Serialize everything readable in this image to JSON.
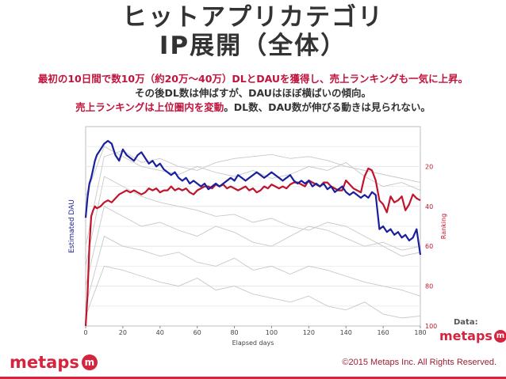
{
  "slide": {
    "title_line1": "ヒットアプリカテゴリ",
    "title_line2": "IP展開（全体）",
    "desc_line1": "最初の10日間で数10万（約20万～40万）DLとDAUを獲得し、売上ランキングも一気に上昇。",
    "desc_line2": "その後DL数は伸ばすが、DAUはほぼ横ばいの傾向。",
    "desc_line3_red": "売上ランキングは上位圏内を変動",
    "desc_line3_rest": "。DL数、DAU数が伸びる動きは見られない。",
    "data_label": "Data:",
    "logo_text": "metaps",
    "logo_mark": "m",
    "copyright": "©2015 Metaps Inc. All Rights Reserved.",
    "accent_color": "#d4253f"
  },
  "chart_data": {
    "type": "line",
    "xlabel": "Elapsed days",
    "ylabel_left": "Estimated DAU",
    "ylabel_right": "Ranking",
    "xlim": [
      0,
      180
    ],
    "x_ticks": [
      "0",
      "20",
      "40",
      "60",
      "80",
      "100",
      "120",
      "140",
      "160",
      "180"
    ],
    "right_axis": {
      "ylim": [
        100,
        0
      ],
      "reversed": true,
      "ticks": [
        "20",
        "40",
        "60",
        "80",
        "100"
      ]
    },
    "left_axis": {
      "tick_labels_shown": false
    },
    "grid": "horizontal",
    "colors": {
      "ranking": "#c0142c",
      "dau": "#1a1f9c",
      "background_lines": "#c8c8c8"
    },
    "series": [
      {
        "role": "ranking",
        "axis": "right",
        "x": [
          0,
          1,
          2,
          3,
          4,
          5,
          6,
          8,
          10,
          12,
          14,
          16,
          18,
          20,
          22,
          24,
          26,
          28,
          30,
          32,
          34,
          36,
          38,
          40,
          42,
          44,
          46,
          48,
          50,
          52,
          54,
          56,
          58,
          60,
          62,
          64,
          66,
          68,
          70,
          72,
          74,
          76,
          78,
          80,
          82,
          84,
          86,
          88,
          90,
          92,
          94,
          96,
          98,
          100,
          102,
          104,
          106,
          108,
          110,
          112,
          114,
          116,
          118,
          120,
          122,
          124,
          126,
          128,
          130,
          132,
          134,
          136,
          138,
          140,
          142,
          144,
          146,
          148,
          150,
          152,
          154,
          156,
          158,
          160,
          162,
          164,
          166,
          168,
          170,
          172,
          174,
          176,
          178,
          180
        ],
        "values": [
          100,
          85,
          60,
          45,
          42,
          40,
          41,
          40,
          38,
          37,
          38,
          36,
          34,
          33,
          32,
          33,
          32,
          33,
          34,
          33,
          31,
          32,
          31,
          33,
          32,
          32,
          30,
          32,
          31,
          32,
          31,
          33,
          34,
          32,
          31,
          30,
          30,
          31,
          29,
          30,
          29,
          31,
          30,
          31,
          32,
          31,
          30,
          32,
          31,
          33,
          32,
          30,
          31,
          29,
          30,
          31,
          30,
          31,
          29,
          28,
          28,
          29,
          30,
          27,
          28,
          29,
          30,
          28,
          28,
          30,
          31,
          32,
          32,
          27,
          29,
          31,
          32,
          33,
          25,
          21,
          22,
          27,
          37,
          39,
          43,
          35,
          38,
          37,
          35,
          42,
          39,
          34,
          36,
          37
        ]
      },
      {
        "role": "dau",
        "axis": "left",
        "x": [
          0,
          1,
          2,
          3,
          4,
          5,
          6,
          8,
          10,
          12,
          14,
          16,
          18,
          20,
          22,
          24,
          26,
          28,
          30,
          32,
          34,
          36,
          38,
          40,
          42,
          44,
          46,
          48,
          50,
          52,
          54,
          56,
          58,
          60,
          62,
          64,
          66,
          68,
          70,
          72,
          74,
          76,
          78,
          80,
          82,
          84,
          86,
          88,
          90,
          92,
          94,
          96,
          98,
          100,
          102,
          104,
          106,
          108,
          110,
          112,
          114,
          116,
          118,
          120,
          122,
          124,
          126,
          128,
          130,
          132,
          134,
          136,
          138,
          140,
          142,
          144,
          146,
          148,
          150,
          152,
          154,
          156,
          158,
          160,
          162,
          164,
          166,
          168,
          170,
          172,
          174,
          176,
          178,
          180
        ],
        "values": [
          38,
          45,
          50,
          52,
          55,
          58,
          60,
          62,
          64,
          65,
          64,
          60,
          58,
          62,
          60,
          59,
          58,
          60,
          61,
          59,
          57,
          58,
          56,
          57,
          55,
          54,
          53,
          54,
          52,
          51,
          52,
          50,
          51,
          50,
          49,
          50,
          48,
          49,
          50,
          49,
          50,
          51,
          52,
          51,
          53,
          52,
          51,
          52,
          53,
          54,
          53,
          52,
          53,
          54,
          53,
          52,
          51,
          52,
          53,
          51,
          50,
          51,
          50,
          51,
          49,
          50,
          49,
          50,
          48,
          49,
          47,
          48,
          49,
          47,
          46,
          47,
          46,
          45,
          46,
          45,
          47,
          46,
          34,
          35,
          33,
          34,
          32,
          33,
          31,
          32,
          30,
          31,
          34,
          25
        ]
      },
      {
        "role": "reference",
        "axis": "right",
        "x": [
          0,
          10,
          20,
          30,
          40,
          50,
          60,
          70,
          80,
          90,
          100,
          110,
          120,
          130,
          140,
          150,
          160,
          170,
          180
        ],
        "values": [
          35,
          10,
          15,
          20,
          22,
          24,
          20,
          23,
          25,
          22,
          26,
          24,
          20,
          22,
          18,
          25,
          30,
          28,
          32
        ]
      },
      {
        "role": "reference",
        "axis": "right",
        "x": [
          0,
          10,
          20,
          30,
          40,
          50,
          60,
          70,
          80,
          90,
          100,
          110,
          120,
          130,
          140,
          150,
          160,
          170,
          180
        ],
        "values": [
          80,
          40,
          45,
          50,
          48,
          52,
          55,
          50,
          53,
          58,
          60,
          55,
          50,
          52,
          56,
          60,
          58,
          62,
          60
        ]
      },
      {
        "role": "reference",
        "axis": "right",
        "x": [
          0,
          10,
          20,
          30,
          40,
          50,
          60,
          70,
          80,
          90,
          100,
          110,
          120,
          130,
          140,
          150,
          160,
          170,
          180
        ],
        "values": [
          70,
          25,
          30,
          35,
          38,
          40,
          42,
          45,
          44,
          48,
          46,
          50,
          52,
          48,
          50,
          55,
          60,
          65,
          63
        ]
      },
      {
        "role": "reference",
        "axis": "right",
        "x": [
          0,
          10,
          20,
          30,
          40,
          50,
          60,
          70,
          80,
          90,
          100,
          110,
          120,
          130,
          140,
          150,
          160,
          170,
          180
        ],
        "values": [
          90,
          55,
          60,
          62,
          65,
          63,
          68,
          70,
          66,
          72,
          70,
          74,
          70,
          72,
          75,
          78,
          80,
          82,
          85
        ]
      },
      {
        "role": "reference",
        "axis": "right",
        "x": [
          0,
          10,
          20,
          30,
          40,
          50,
          60,
          70,
          80,
          90,
          100,
          110,
          120,
          130,
          140,
          150,
          160,
          170,
          180
        ],
        "values": [
          60,
          15,
          12,
          18,
          16,
          20,
          22,
          18,
          16,
          15,
          14,
          16,
          15,
          17,
          20,
          22,
          24,
          26,
          28
        ]
      },
      {
        "role": "reference",
        "axis": "right",
        "x": [
          0,
          10,
          20,
          30,
          40,
          50,
          60,
          70,
          80,
          90,
          100,
          110,
          120,
          130,
          140,
          150,
          160,
          170,
          180
        ],
        "values": [
          95,
          70,
          72,
          75,
          78,
          80,
          76,
          82,
          80,
          84,
          86,
          88,
          85,
          90,
          92,
          88,
          94,
          96,
          95
        ]
      }
    ]
  }
}
